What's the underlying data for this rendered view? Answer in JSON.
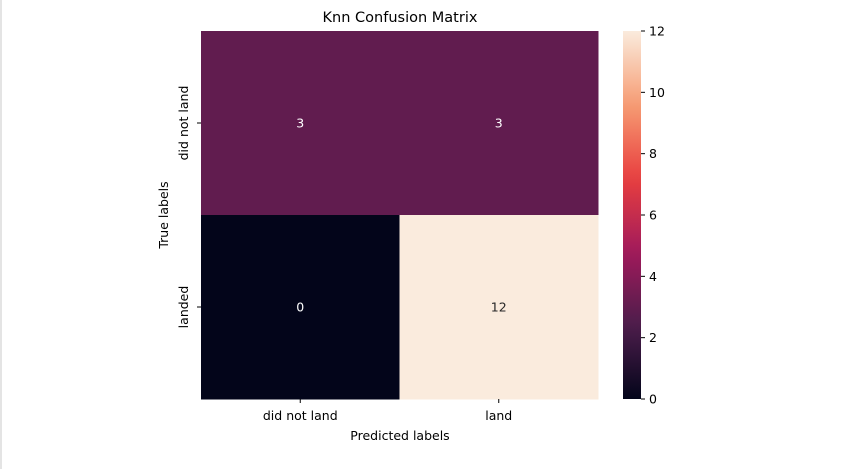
{
  "chart_data": {
    "type": "heatmap",
    "title": "Knn Confusion Matrix",
    "xlabel": "Predicted labels",
    "ylabel": "True labels",
    "x_categories": [
      "did not land",
      "land"
    ],
    "y_categories": [
      "did not land",
      "landed"
    ],
    "values": [
      [
        3,
        3
      ],
      [
        0,
        12
      ]
    ],
    "colorbar": {
      "min": 0,
      "max": 12,
      "ticks": [
        0,
        2,
        4,
        6,
        8,
        10,
        12
      ],
      "colormap": "rocket",
      "colors": [
        "#03051a",
        "#4c1d4b",
        "#a11a5b",
        "#e83f3f",
        "#f69c73",
        "#faebdd"
      ]
    },
    "annotation_color_dark_bg": "#ffffff",
    "annotation_color_light_bg": "#262626"
  }
}
